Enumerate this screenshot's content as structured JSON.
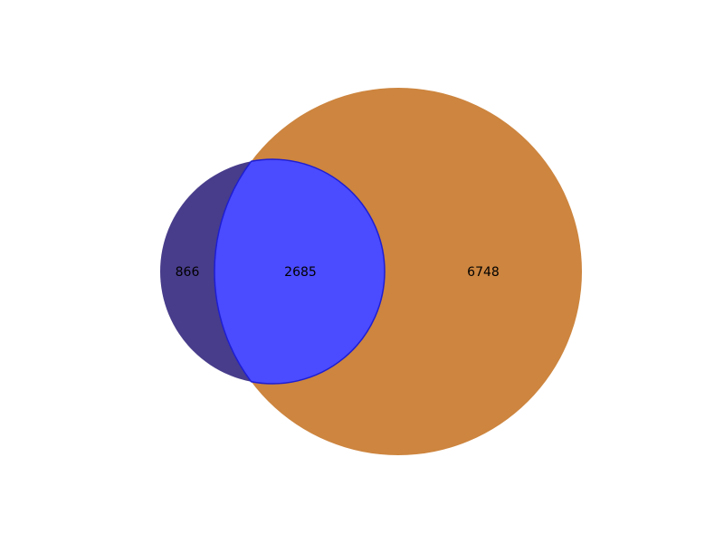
{
  "chart_data": {
    "type": "venn",
    "sets": [
      {
        "id": "A",
        "size": 3551,
        "color": "#483D8B"
      },
      {
        "id": "B",
        "size": 9433,
        "color": "#CD853F"
      }
    ],
    "regions": {
      "A_only": 866,
      "intersection": 2685,
      "B_only": 6748
    },
    "region_labels": {
      "A_only": "866",
      "intersection": "2685",
      "B_only": "6748"
    },
    "intersection_color": "#4B4BFF",
    "intersection_edge_color": "#1E1ED2"
  }
}
